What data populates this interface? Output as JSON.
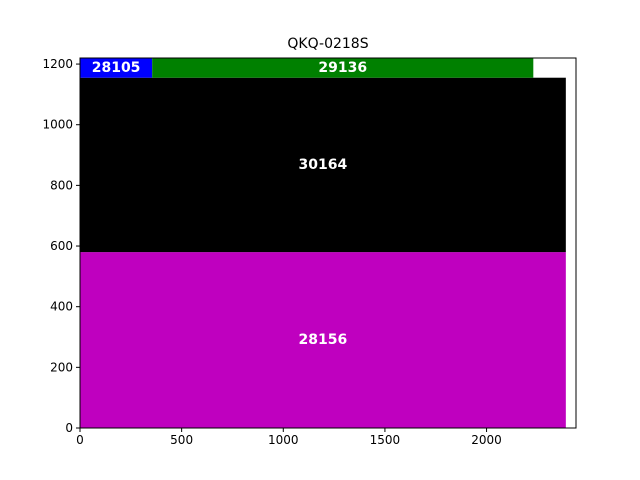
{
  "chart_data": {
    "type": "treemap",
    "title": "QKQ-0218S",
    "xlim": [
      0,
      2440
    ],
    "ylim": [
      0,
      1220
    ],
    "xticks": [
      0,
      500,
      1000,
      1500,
      2000
    ],
    "yticks": [
      0,
      200,
      400,
      600,
      800,
      1000,
      1200
    ],
    "grid": false,
    "rects": [
      {
        "label": "28156",
        "color": "#bf00bf",
        "x0": 0,
        "x1": 2390,
        "y0": 0,
        "y1": 580
      },
      {
        "label": "30164",
        "color": "#000000",
        "x0": 0,
        "x1": 2390,
        "y0": 580,
        "y1": 1155
      },
      {
        "label": "28105",
        "color": "#0000ff",
        "x0": 0,
        "x1": 355,
        "y0": 1155,
        "y1": 1220
      },
      {
        "label": "29136",
        "color": "#008000",
        "x0": 355,
        "x1": 2230,
        "y0": 1155,
        "y1": 1220
      }
    ]
  }
}
